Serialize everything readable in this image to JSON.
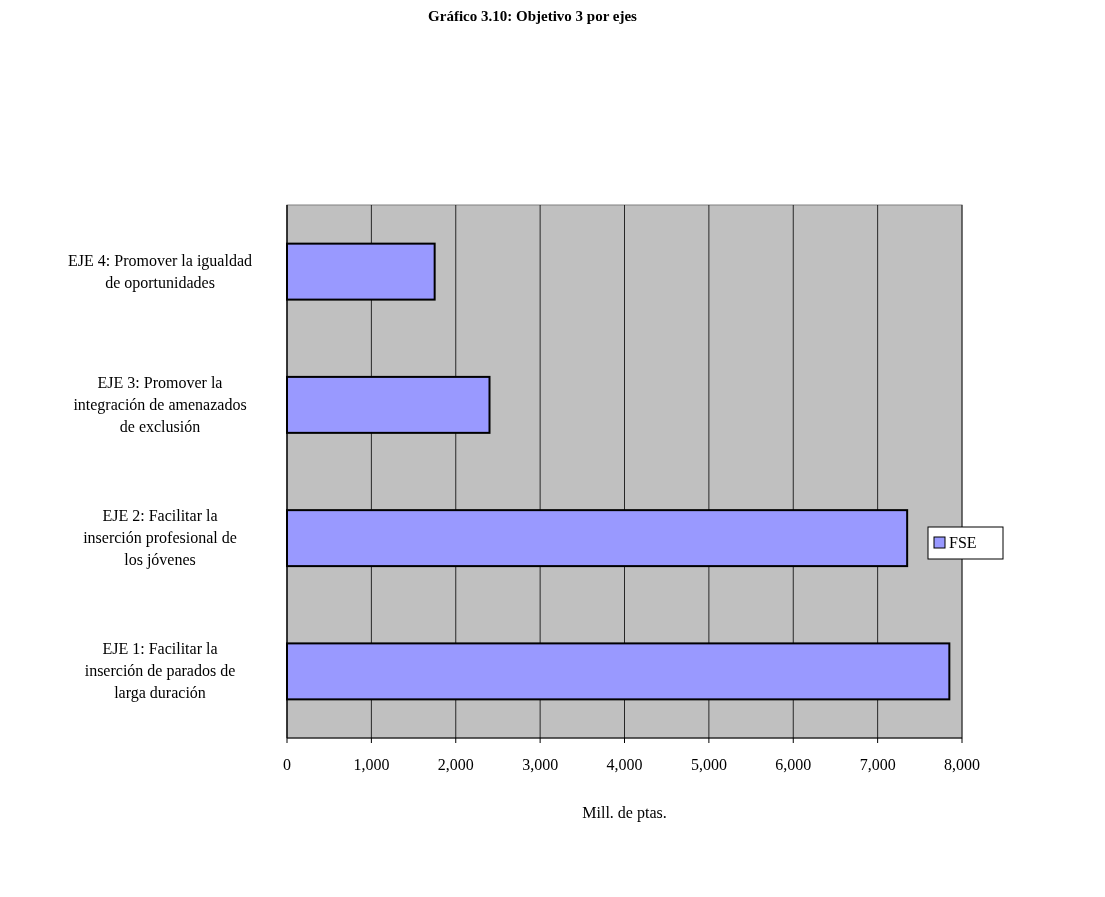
{
  "chart_data": {
    "type": "bar",
    "orientation": "horizontal",
    "title": "Gráfico 3.10: Objetivo 3 por ejes",
    "xlabel": "Mill. de ptas.",
    "categories": [
      "EJE 4: Promover la igualdad de oportunidades",
      "EJE 3: Promover la integración de amenazados de exclusión",
      "EJE 2: Facilitar la inserción profesional de los jóvenes",
      "EJE 1: Facilitar la inserción de parados de larga duración"
    ],
    "series": [
      {
        "name": "FSE",
        "color": "#9999ff",
        "values": [
          1750,
          2400,
          7350,
          7850
        ]
      }
    ],
    "xlim": [
      0,
      8000
    ],
    "xticks": [
      {
        "value": 0,
        "label": "0"
      },
      {
        "value": 1000,
        "label": "1,000"
      },
      {
        "value": 2000,
        "label": "2,000"
      },
      {
        "value": 3000,
        "label": "3,000"
      },
      {
        "value": 4000,
        "label": "4,000"
      },
      {
        "value": 5000,
        "label": "5,000"
      },
      {
        "value": 6000,
        "label": "6,000"
      },
      {
        "value": 7000,
        "label": "7,000"
      },
      {
        "value": 8000,
        "label": "8,000"
      }
    ],
    "grid": "x",
    "legend": "right"
  }
}
